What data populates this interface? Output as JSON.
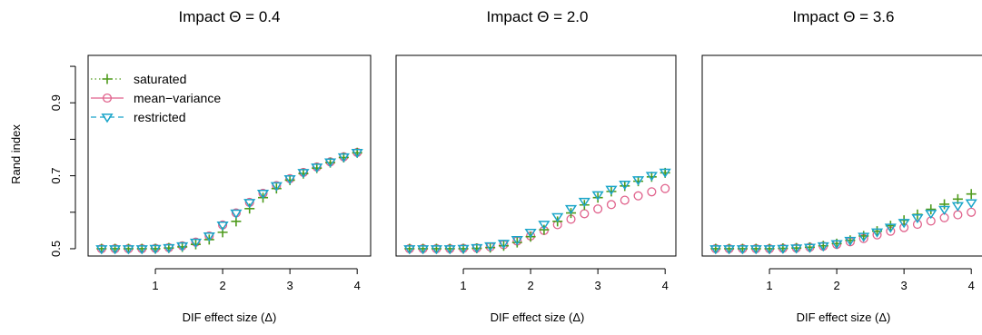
{
  "colors": {
    "saturated": "#4f9b1c",
    "mean_variance": "#e0628c",
    "restricted": "#1aa5c9",
    "axis": "#000000"
  },
  "chart_data": {
    "type": "scatter",
    "x": [
      0.2,
      0.4,
      0.6,
      0.8,
      1.0,
      1.2,
      1.4,
      1.6,
      1.8,
      2.0,
      2.2,
      2.4,
      2.6,
      2.8,
      3.0,
      3.2,
      3.4,
      3.6,
      3.8,
      4.0
    ],
    "xlabel": "DIF effect size (Δ)",
    "ylabel": "Rand index",
    "xlim": [
      0.0,
      4.2
    ],
    "ylim": [
      0.48,
      1.03
    ],
    "xticks": [
      1,
      2,
      3,
      4
    ],
    "yticks": [
      0.5,
      0.7,
      0.9
    ],
    "ytick_labels_major": [
      "0.5",
      "0.7",
      "0.9"
    ],
    "ytick_minor": [
      0.6,
      0.8,
      1.0
    ],
    "xtick_labels": [
      "1",
      "2",
      "3",
      "4"
    ],
    "legend": {
      "placement": "top-left",
      "entries": [
        {
          "name": "saturated",
          "marker": "plus",
          "line": "dotted"
        },
        {
          "name": "mean−variance",
          "marker": "circle",
          "line": "solid"
        },
        {
          "name": "restricted",
          "marker": "triangle-down",
          "line": "dashed"
        }
      ]
    },
    "panels": [
      {
        "title": "Impact Θ = 0.4",
        "series": [
          {
            "name": "saturated",
            "values": [
              0.5,
              0.5,
              0.5,
              0.5,
              0.5,
              0.502,
              0.505,
              0.512,
              0.525,
              0.545,
              0.575,
              0.61,
              0.64,
              0.665,
              0.688,
              0.706,
              0.721,
              0.736,
              0.75,
              0.763
            ]
          },
          {
            "name": "mean−variance",
            "values": [
              0.5,
              0.5,
              0.5,
              0.5,
              0.501,
              0.503,
              0.508,
              0.518,
              0.535,
              0.565,
              0.598,
              0.627,
              0.652,
              0.673,
              0.692,
              0.709,
              0.724,
              0.738,
              0.752,
              0.764
            ]
          },
          {
            "name": "restricted",
            "values": [
              0.5,
              0.5,
              0.5,
              0.5,
              0.501,
              0.503,
              0.508,
              0.518,
              0.535,
              0.565,
              0.598,
              0.627,
              0.652,
              0.673,
              0.692,
              0.709,
              0.724,
              0.738,
              0.752,
              0.764
            ]
          }
        ]
      },
      {
        "title": "Impact Θ = 2.0",
        "series": [
          {
            "name": "saturated",
            "values": [
              0.5,
              0.5,
              0.5,
              0.5,
              0.5,
              0.501,
              0.503,
              0.508,
              0.517,
              0.533,
              0.552,
              0.575,
              0.598,
              0.62,
              0.64,
              0.657,
              0.672,
              0.685,
              0.697,
              0.708
            ]
          },
          {
            "name": "mean−variance",
            "values": [
              0.5,
              0.5,
              0.5,
              0.5,
              0.501,
              0.502,
              0.505,
              0.511,
              0.521,
              0.535,
              0.55,
              0.566,
              0.581,
              0.596,
              0.609,
              0.621,
              0.633,
              0.645,
              0.656,
              0.665
            ]
          },
          {
            "name": "restricted",
            "values": [
              0.5,
              0.5,
              0.5,
              0.5,
              0.501,
              0.503,
              0.508,
              0.515,
              0.525,
              0.545,
              0.567,
              0.588,
              0.61,
              0.63,
              0.648,
              0.663,
              0.677,
              0.689,
              0.701,
              0.71
            ]
          }
        ]
      },
      {
        "title": "Impact Θ = 3.6",
        "series": [
          {
            "name": "saturated",
            "values": [
              0.5,
              0.5,
              0.5,
              0.5,
              0.5,
              0.501,
              0.502,
              0.504,
              0.508,
              0.514,
              0.523,
              0.535,
              0.548,
              0.563,
              0.578,
              0.594,
              0.608,
              0.622,
              0.636,
              0.65
            ]
          },
          {
            "name": "mean−variance",
            "values": [
              0.5,
              0.5,
              0.5,
              0.5,
              0.5,
              0.501,
              0.502,
              0.504,
              0.507,
              0.512,
              0.519,
              0.528,
              0.538,
              0.548,
              0.558,
              0.567,
              0.576,
              0.585,
              0.593,
              0.6
            ]
          },
          {
            "name": "restricted",
            "values": [
              0.5,
              0.5,
              0.5,
              0.5,
              0.5,
              0.501,
              0.502,
              0.504,
              0.508,
              0.514,
              0.523,
              0.534,
              0.546,
              0.559,
              0.572,
              0.585,
              0.597,
              0.608,
              0.618,
              0.626
            ]
          }
        ]
      }
    ]
  }
}
